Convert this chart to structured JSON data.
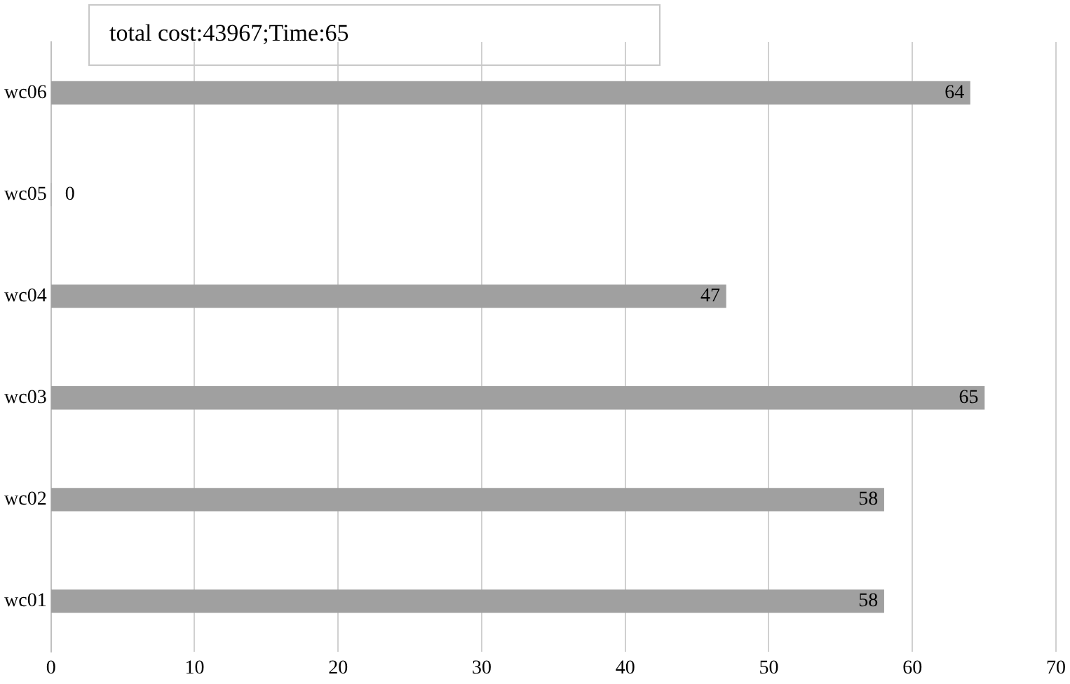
{
  "chart_data": {
    "type": "bar",
    "orientation": "horizontal",
    "title": "total cost:43967;Time:65",
    "categories": [
      "wc06",
      "wc05",
      "wc04",
      "wc03",
      "wc02",
      "wc01"
    ],
    "values": [
      64,
      0,
      47,
      65,
      58,
      58
    ],
    "color": "#a0a0a0",
    "xlim": [
      0,
      70
    ],
    "xticks": [
      0,
      10,
      20,
      30,
      40,
      50,
      60,
      70
    ],
    "grid": "x",
    "data_labels": true
  }
}
